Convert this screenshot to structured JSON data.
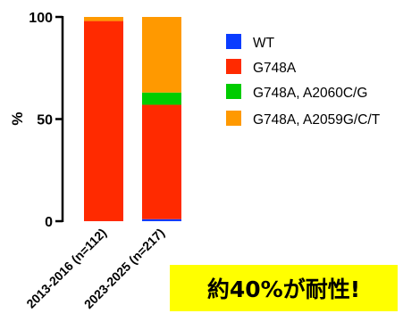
{
  "chart_data": {
    "type": "bar",
    "stacked": true,
    "categories": [
      "2013-2016 (n=112)",
      "2023-2025 (n=217)"
    ],
    "series": [
      {
        "name": "WT",
        "color": "#0a3cff",
        "values": [
          0,
          1
        ]
      },
      {
        "name": "G748A",
        "color": "#ff2a00",
        "values": [
          98,
          56
        ]
      },
      {
        "name": "G748A, A2060C/G",
        "color": "#00cc00",
        "values": [
          0,
          6
        ]
      },
      {
        "name": "G748A, A2059G/C/T",
        "color": "#ff9900",
        "values": [
          2,
          37
        ]
      }
    ],
    "ylabel": "%",
    "ylim": [
      0,
      100
    ],
    "yticks": [
      "0",
      "50",
      "100"
    ],
    "legend_position": "right"
  },
  "callout": {
    "text": "約40%が耐性!"
  }
}
